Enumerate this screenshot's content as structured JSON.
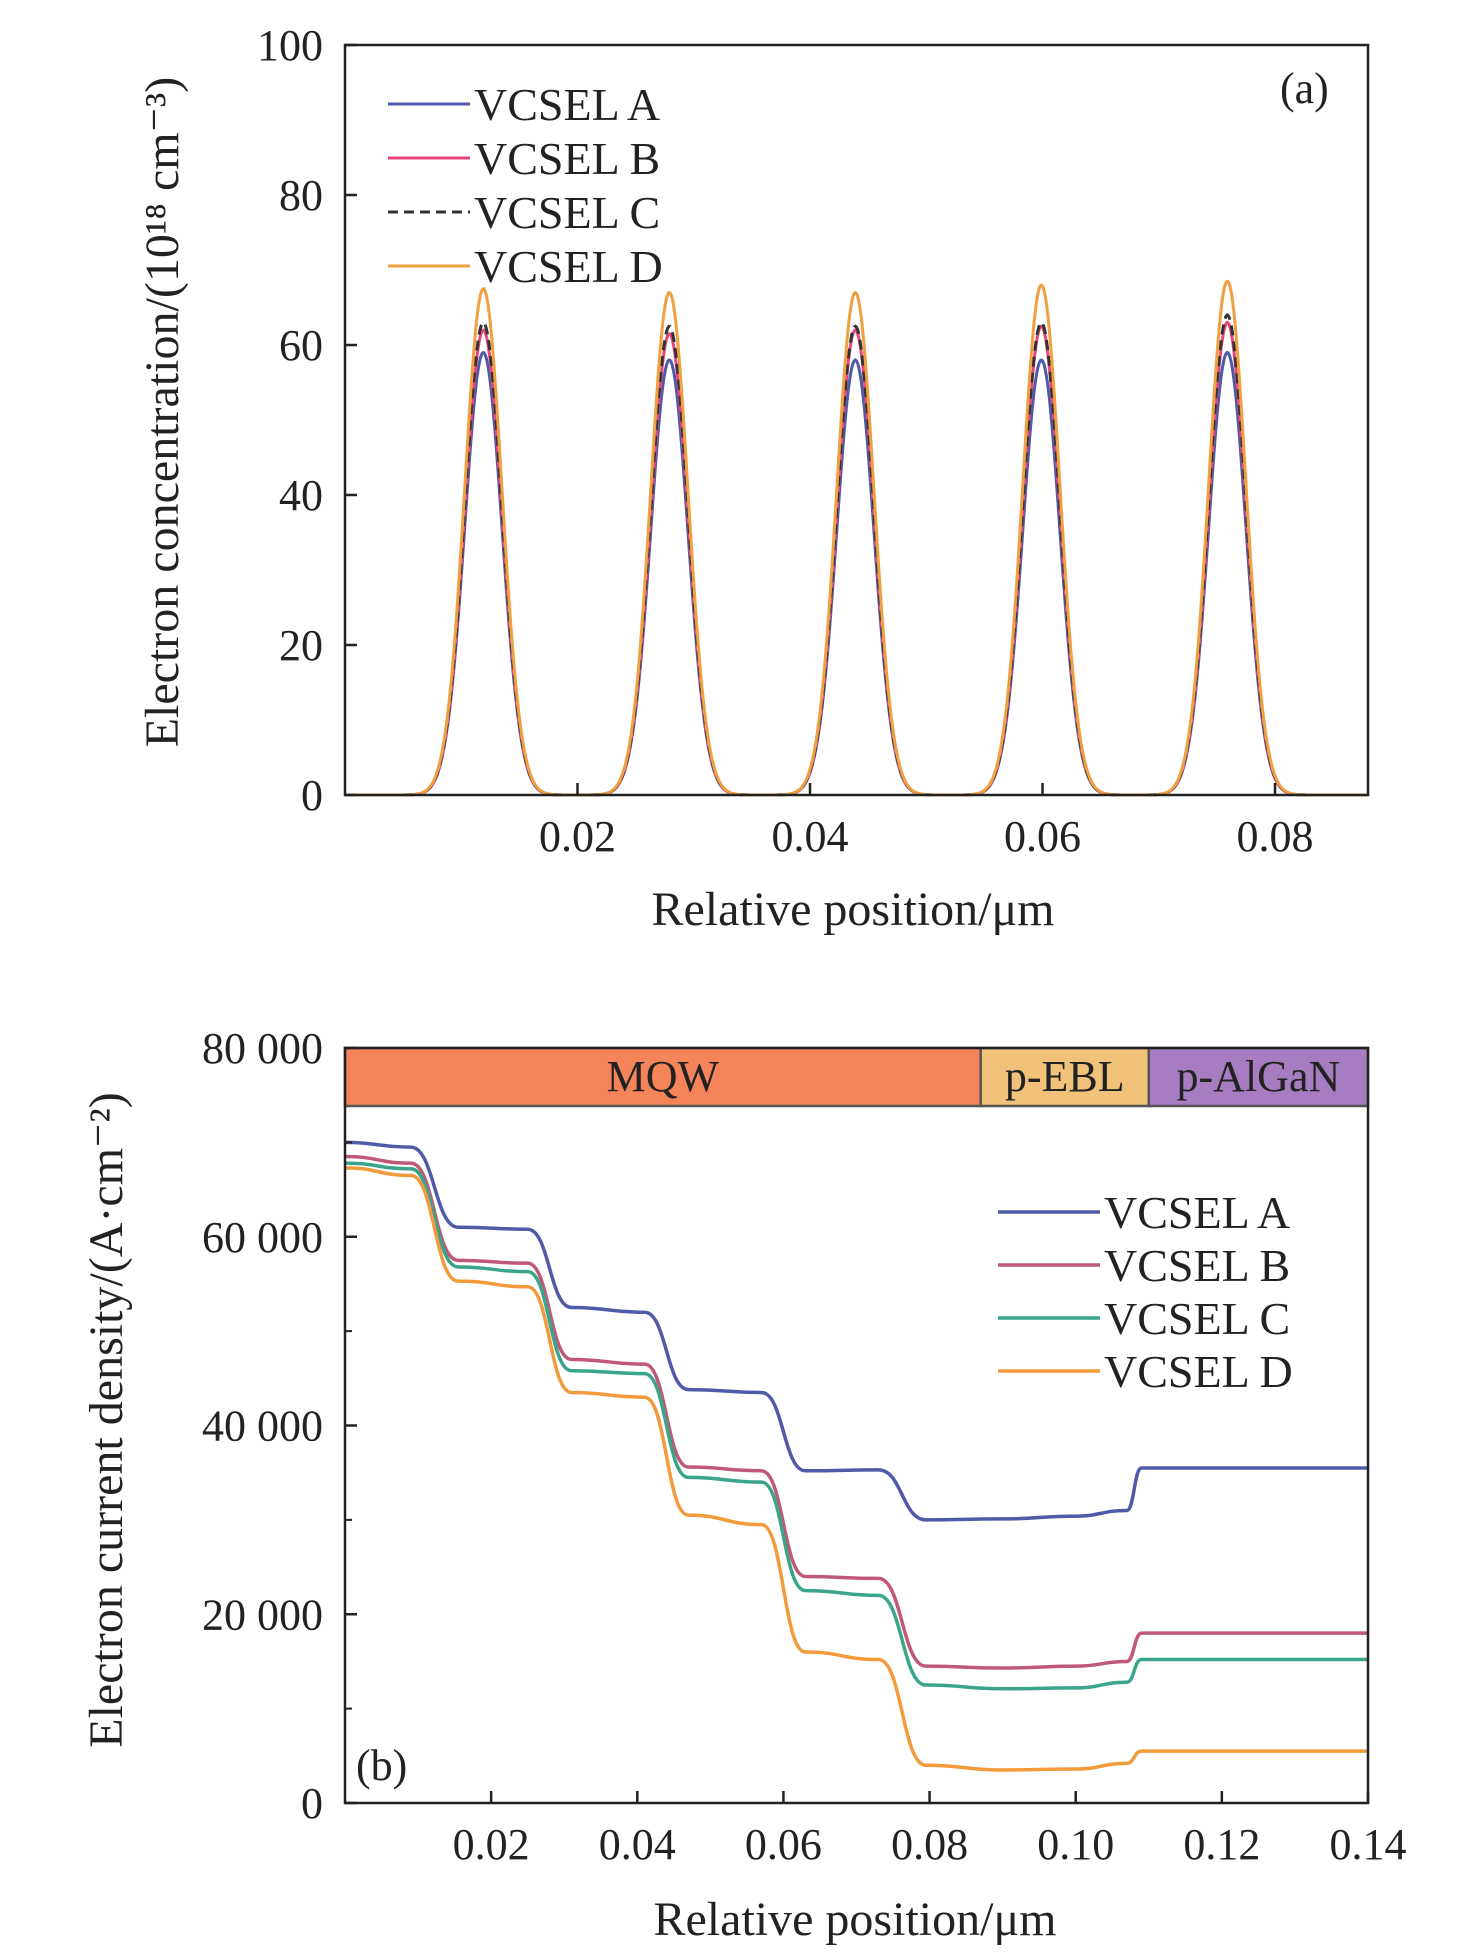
{
  "chart_data": [
    {
      "panel": "(a)",
      "type": "line",
      "xlabel": "Relative position/μm",
      "ylabel": "Electron concentration/(10¹⁸ cm⁻³)",
      "xlim": [
        0.0,
        0.088
      ],
      "ylim": [
        0,
        100
      ],
      "xticks": [
        0.02,
        0.04,
        0.06,
        0.08
      ],
      "xtick_labels": [
        "0.02",
        "0.04",
        "0.06",
        "0.08"
      ],
      "yticks": [
        0,
        20,
        40,
        60,
        80,
        100
      ],
      "ytick_labels": [
        "0",
        "20",
        "40",
        "60",
        "80",
        "100"
      ],
      "legend_position": "top-left",
      "peak_centers": [
        0.0119,
        0.0279,
        0.0439,
        0.0599,
        0.0759
      ],
      "peak_sigma": 0.0016,
      "series": [
        {
          "name": "VCSEL A",
          "color": "#4f5aa8",
          "dash": "solid",
          "peaks": [
            59,
            58,
            58,
            58,
            59
          ]
        },
        {
          "name": "VCSEL B",
          "color": "#e8477a",
          "dash": "solid",
          "peaks": [
            62,
            61.5,
            62,
            62.5,
            63
          ]
        },
        {
          "name": "VCSEL C",
          "color": "#333333",
          "dash": "dashed",
          "peaks": [
            63,
            62.5,
            62.5,
            63,
            64
          ]
        },
        {
          "name": "VCSEL D",
          "color": "#f0a040",
          "dash": "solid",
          "peaks": [
            67.5,
            67,
            67,
            68,
            68.5
          ]
        }
      ]
    },
    {
      "panel": "(b)",
      "type": "line",
      "xlabel": "Relative position/μm",
      "ylabel": "Electron current density/(A·cm⁻²)",
      "xlim": [
        0.0,
        0.14
      ],
      "ylim": [
        0,
        80000
      ],
      "xticks": [
        0.02,
        0.04,
        0.06,
        0.08,
        0.1,
        0.12,
        0.14
      ],
      "xtick_labels": [
        "0.02",
        "0.04",
        "0.06",
        "0.08",
        "0.10",
        "0.12",
        "0.14"
      ],
      "yticks": [
        0,
        20000,
        40000,
        60000,
        80000
      ],
      "ytick_labels": [
        "0",
        "20 000",
        "40 000",
        "60 000",
        "80 000"
      ],
      "legend_position": "right",
      "regions": [
        {
          "label": "MQW",
          "x0": 0.0,
          "x1": 0.087,
          "color": "#f5845a"
        },
        {
          "label": "p-EBL",
          "x0": 0.087,
          "x1": 0.11,
          "color": "#f0c27a"
        },
        {
          "label": "p-AlGaN",
          "x0": 0.11,
          "x1": 0.14,
          "color": "#a77cc0"
        }
      ],
      "series": [
        {
          "name": "VCSEL A",
          "color": "#4f5aa8",
          "x": [
            0.0,
            0.009,
            0.0155,
            0.025,
            0.031,
            0.041,
            0.047,
            0.057,
            0.063,
            0.073,
            0.0795,
            0.09,
            0.1,
            0.107,
            0.109,
            0.14
          ],
          "y": [
            70000,
            69500,
            61000,
            60800,
            52500,
            52000,
            43800,
            43500,
            35200,
            35300,
            30000,
            30100,
            30400,
            31000,
            35500,
            35500
          ]
        },
        {
          "name": "VCSEL B",
          "color": "#c05878",
          "x": [
            0.0,
            0.009,
            0.0155,
            0.025,
            0.031,
            0.041,
            0.047,
            0.057,
            0.063,
            0.073,
            0.0795,
            0.09,
            0.1,
            0.107,
            0.109,
            0.14
          ],
          "y": [
            68500,
            67800,
            57500,
            57200,
            47000,
            46500,
            35600,
            35200,
            24000,
            23800,
            14500,
            14300,
            14500,
            15000,
            18000,
            18000
          ]
        },
        {
          "name": "VCSEL C",
          "color": "#3aa58a",
          "x": [
            0.0,
            0.009,
            0.0155,
            0.025,
            0.031,
            0.041,
            0.047,
            0.057,
            0.063,
            0.073,
            0.0795,
            0.09,
            0.1,
            0.107,
            0.109,
            0.14
          ],
          "y": [
            67800,
            67200,
            56800,
            56300,
            45800,
            45500,
            34500,
            34000,
            22500,
            22000,
            12500,
            12100,
            12200,
            12800,
            15200,
            15200
          ]
        },
        {
          "name": "VCSEL D",
          "color": "#f39a3c",
          "x": [
            0.0,
            0.009,
            0.0155,
            0.025,
            0.031,
            0.041,
            0.047,
            0.057,
            0.063,
            0.073,
            0.0795,
            0.09,
            0.1,
            0.107,
            0.109,
            0.14
          ],
          "y": [
            67300,
            66500,
            55300,
            54700,
            43500,
            43000,
            30500,
            29500,
            16000,
            15200,
            4000,
            3500,
            3600,
            4200,
            5500,
            5500
          ]
        }
      ]
    }
  ]
}
